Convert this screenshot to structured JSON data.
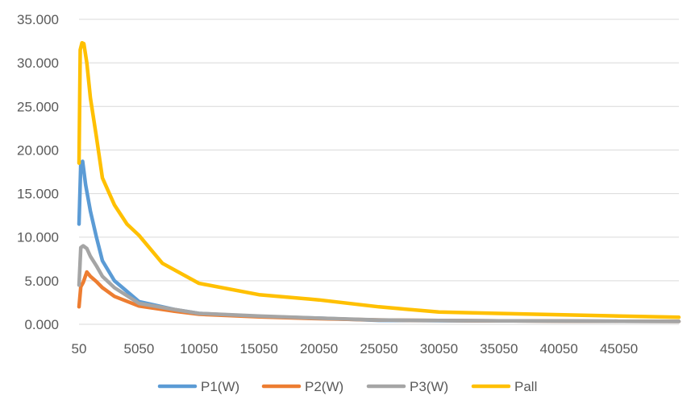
{
  "chart_data": {
    "type": "line",
    "title": "",
    "xlabel": "",
    "ylabel": "",
    "xlim": [
      50,
      50050
    ],
    "ylim": [
      0,
      35000
    ],
    "x_ticks": [
      "50",
      "5050",
      "10050",
      "15050",
      "20050",
      "25050",
      "30050",
      "35050",
      "40050",
      "45050"
    ],
    "y_ticks": [
      "0.000",
      "5.000",
      "10.000",
      "15.000",
      "20.000",
      "25.000",
      "30.000",
      "35.000"
    ],
    "grid": true,
    "legend_position": "bottom",
    "series": [
      {
        "name": "P1(W)",
        "color": "#5b9bd5",
        "points": [
          [
            50,
            11500
          ],
          [
            200,
            18500
          ],
          [
            350,
            18700
          ],
          [
            600,
            16000
          ],
          [
            1000,
            13000
          ],
          [
            1500,
            10000
          ],
          [
            2000,
            7300
          ],
          [
            3000,
            5000
          ],
          [
            5050,
            2600
          ],
          [
            8000,
            1700
          ],
          [
            10050,
            1250
          ],
          [
            15050,
            900
          ],
          [
            20050,
            700
          ],
          [
            25050,
            450
          ],
          [
            30050,
            420
          ],
          [
            35050,
            400
          ],
          [
            40050,
            380
          ],
          [
            45050,
            350
          ],
          [
            50050,
            330
          ]
        ]
      },
      {
        "name": "P2(W)",
        "color": "#ed7d31",
        "points": [
          [
            50,
            2000
          ],
          [
            200,
            4300
          ],
          [
            400,
            4800
          ],
          [
            700,
            6000
          ],
          [
            1000,
            5500
          ],
          [
            1500,
            4900
          ],
          [
            2000,
            4200
          ],
          [
            3000,
            3200
          ],
          [
            5050,
            2100
          ],
          [
            8000,
            1500
          ],
          [
            10050,
            1150
          ],
          [
            15050,
            850
          ],
          [
            20050,
            650
          ],
          [
            25050,
            500
          ],
          [
            30050,
            430
          ],
          [
            35050,
            400
          ],
          [
            40050,
            370
          ],
          [
            45050,
            350
          ],
          [
            50050,
            330
          ]
        ]
      },
      {
        "name": "P3(W)",
        "color": "#a5a5a5",
        "points": [
          [
            50,
            4500
          ],
          [
            200,
            8800
          ],
          [
            400,
            9000
          ],
          [
            700,
            8700
          ],
          [
            1000,
            7800
          ],
          [
            1500,
            6700
          ],
          [
            2000,
            5500
          ],
          [
            3000,
            4200
          ],
          [
            5050,
            2400
          ],
          [
            8000,
            1700
          ],
          [
            10050,
            1250
          ],
          [
            15050,
            950
          ],
          [
            20050,
            700
          ],
          [
            25050,
            500
          ],
          [
            30050,
            430
          ],
          [
            35050,
            400
          ],
          [
            40050,
            370
          ],
          [
            45050,
            350
          ],
          [
            50050,
            330
          ]
        ]
      },
      {
        "name": "Pall",
        "color": "#ffc000",
        "points": [
          [
            50,
            18500
          ],
          [
            150,
            31500
          ],
          [
            300,
            32300
          ],
          [
            450,
            32200
          ],
          [
            700,
            30000
          ],
          [
            1000,
            26000
          ],
          [
            1500,
            21500
          ],
          [
            2000,
            16800
          ],
          [
            3000,
            13700
          ],
          [
            4050,
            11500
          ],
          [
            5050,
            10200
          ],
          [
            7000,
            7000
          ],
          [
            10050,
            4700
          ],
          [
            15050,
            3400
          ],
          [
            20050,
            2800
          ],
          [
            25050,
            2000
          ],
          [
            30050,
            1400
          ],
          [
            35050,
            1250
          ],
          [
            40050,
            1100
          ],
          [
            45050,
            950
          ],
          [
            50050,
            800
          ]
        ]
      }
    ]
  }
}
